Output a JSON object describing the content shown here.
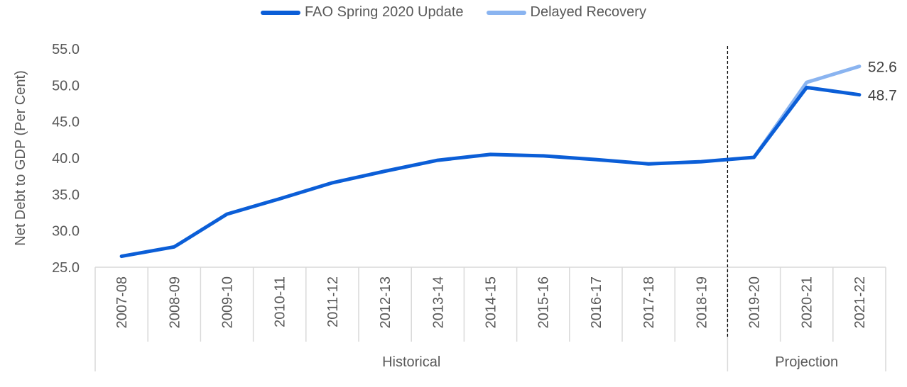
{
  "chart_data": {
    "type": "line",
    "categories": [
      "2007-08",
      "2008-09",
      "2009-10",
      "2010-11",
      "2011-12",
      "2012-13",
      "2013-14",
      "2014-15",
      "2015-16",
      "2016-17",
      "2017-18",
      "2018-19",
      "2019-20",
      "2020-21",
      "2021-22"
    ],
    "series": [
      {
        "name": "FAO Spring 2020 Update",
        "color": "#0b5ed7",
        "values": [
          26.5,
          27.8,
          32.3,
          34.4,
          36.6,
          38.2,
          39.7,
          40.5,
          40.3,
          39.8,
          39.2,
          39.5,
          40.1,
          49.7,
          48.7
        ]
      },
      {
        "name": "Delayed Recovery",
        "color": "#8ab4f0",
        "values": [
          null,
          null,
          null,
          null,
          null,
          null,
          null,
          null,
          null,
          null,
          null,
          null,
          40.1,
          50.4,
          52.6
        ]
      }
    ],
    "ylabel": "Net Debt to GDP (Per Cent)",
    "ylim": [
      25,
      55
    ],
    "yticks": [
      "25.0",
      "30.0",
      "35.0",
      "40.0",
      "45.0",
      "50.0",
      "55.0"
    ],
    "end_labels": [
      "48.7",
      "52.6"
    ],
    "groups": [
      {
        "label": "Historical"
      },
      {
        "label": "Projection"
      }
    ],
    "divider_after": "2018-19",
    "grid": false,
    "legend_position": "top-center"
  }
}
